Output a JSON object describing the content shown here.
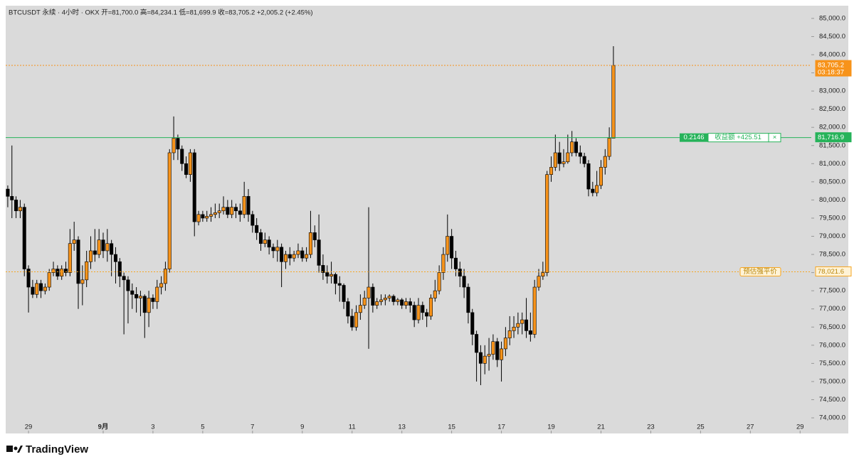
{
  "chart_data": {
    "type": "candlestick",
    "title": "BTCUSDT 永续 · 4小时 · OKX  开=81,700.0  高=84,234.1  低=81,699.9  收=83,705.2  +2,005.2 (+2.45%)",
    "up_color": "#f7931a",
    "down_color": "#000000",
    "open": [
      80300,
      80100,
      80000,
      79700,
      79800,
      78100,
      77600,
      77400,
      77700,
      77500,
      77600,
      78000,
      78100,
      77900,
      78100,
      78000,
      78800,
      78900,
      77700,
      77800,
      78300,
      78600,
      78500,
      78900,
      78600,
      78800,
      78500,
      78300,
      77900,
      77800,
      77500,
      77400,
      77300,
      77350,
      76900,
      77300,
      77200,
      77600,
      77700,
      78100,
      81300,
      81700,
      81400,
      81000,
      80700,
      81300,
      79400,
      79600,
      79500,
      79550,
      79600,
      79650,
      79700,
      79800,
      79600,
      79800,
      79700,
      79600,
      80100,
      79600,
      79300,
      79100,
      78800,
      78900,
      78700,
      78600,
      78700,
      78300,
      78500,
      78400,
      78500,
      78600,
      78400,
      78500,
      79100,
      78900,
      78200,
      78000,
      77900,
      77950,
      77700,
      77650,
      77200,
      76800,
      76500,
      76900,
      77100,
      77300,
      77600,
      77100,
      77200,
      77250,
      77300,
      77350,
      77200,
      77250,
      77100,
      77200,
      77100,
      76700,
      77100,
      76900,
      76800,
      77300,
      77500,
      78000,
      78500,
      79000,
      78400,
      78100,
      77900,
      77600,
      76900,
      76300,
      75800,
      75500,
      75700,
      75750,
      76100,
      75600,
      75900,
      76200,
      76400,
      76500,
      76600,
      76700,
      76400,
      76300,
      77600,
      77900,
      78000,
      80700,
      80900,
      81300,
      81000,
      81050,
      81300,
      81600,
      81300,
      81200,
      81000,
      80300,
      80200,
      80400,
      80900,
      81200,
      81700
    ],
    "high": [
      80400,
      81500,
      80100,
      80000,
      79900,
      78200,
      77800,
      77800,
      77800,
      77700,
      78100,
      78300,
      78200,
      78200,
      78300,
      79200,
      79400,
      79000,
      78200,
      78600,
      79000,
      79200,
      79200,
      79100,
      79200,
      78900,
      78700,
      78400,
      78000,
      77900,
      77700,
      77600,
      77500,
      77400,
      77500,
      77400,
      77800,
      77900,
      78300,
      81400,
      82300,
      81800,
      81500,
      81200,
      81400,
      81400,
      79700,
      79700,
      79700,
      79800,
      79900,
      79900,
      80100,
      80000,
      80000,
      79900,
      79900,
      80500,
      80300,
      79700,
      79500,
      79200,
      79100,
      79000,
      78800,
      78900,
      78800,
      78600,
      78700,
      78600,
      78800,
      78700,
      78700,
      79700,
      79300,
      79600,
      78500,
      78200,
      78300,
      78000,
      77900,
      77700,
      77300,
      77000,
      77100,
      77400,
      77500,
      79800,
      77700,
      77300,
      77400,
      77400,
      77400,
      77400,
      77300,
      77300,
      77300,
      77300,
      77200,
      77300,
      77200,
      77000,
      77400,
      77800,
      78200,
      78700,
      79600,
      79200,
      78600,
      78300,
      78100,
      77700,
      77000,
      76400,
      76000,
      76000,
      76200,
      76300,
      76200,
      76100,
      76500,
      76800,
      76800,
      76900,
      76900,
      77300,
      76900,
      77800,
      78100,
      78300,
      80800,
      81200,
      81800,
      81600,
      81400,
      81800,
      81900,
      81700,
      81500,
      81300,
      81100,
      80500,
      80800,
      81100,
      81400,
      82000,
      84234.1
    ],
    "low": [
      79800,
      79500,
      79500,
      79500,
      77900,
      76900,
      77300,
      77300,
      77300,
      77400,
      77500,
      77900,
      77800,
      77800,
      77900,
      77900,
      78600,
      77000,
      77100,
      77600,
      78100,
      78300,
      78400,
      78400,
      78300,
      77900,
      77700,
      77600,
      76300,
      76600,
      77000,
      76900,
      76800,
      76200,
      76500,
      77000,
      77000,
      77400,
      77500,
      78000,
      81100,
      81100,
      80800,
      80600,
      80500,
      79000,
      79300,
      79400,
      79400,
      79400,
      79500,
      79500,
      79600,
      79500,
      79500,
      79500,
      79400,
      79500,
      79400,
      79100,
      78900,
      78600,
      78700,
      78500,
      78400,
      78300,
      77600,
      78100,
      78200,
      78300,
      78400,
      78300,
      78300,
      78400,
      78700,
      78000,
      77800,
      77700,
      77700,
      77400,
      77200,
      77000,
      76600,
      76400,
      76400,
      76700,
      77000,
      75900,
      76900,
      77000,
      77100,
      77100,
      77200,
      77100,
      77100,
      77000,
      77000,
      76900,
      76500,
      76600,
      76700,
      76500,
      76700,
      77200,
      77400,
      77800,
      78300,
      78100,
      77900,
      77600,
      77300,
      76600,
      76000,
      75000,
      74900,
      75200,
      75300,
      75600,
      75400,
      75000,
      75700,
      76000,
      76200,
      76300,
      76300,
      76200,
      76100,
      76200,
      77500,
      77800,
      77900,
      80500,
      80800,
      80800,
      80900,
      81000,
      81200,
      81200,
      81000,
      80900,
      80100,
      80100,
      80100,
      80300,
      80700,
      81100,
      81699.9
    ],
    "close": [
      80100,
      80000,
      79700,
      79800,
      78100,
      77600,
      77400,
      77700,
      77500,
      77600,
      78000,
      78100,
      77900,
      78100,
      78000,
      78800,
      78900,
      77700,
      77800,
      78300,
      78600,
      78500,
      78900,
      78600,
      78800,
      78500,
      78300,
      77900,
      77800,
      77500,
      77400,
      77300,
      77350,
      76900,
      77300,
      77200,
      77600,
      77700,
      78100,
      81300,
      81700,
      81400,
      81000,
      80700,
      81300,
      79400,
      79600,
      79500,
      79550,
      79600,
      79650,
      79700,
      79800,
      79600,
      79800,
      79700,
      79600,
      80100,
      79600,
      79300,
      79100,
      78800,
      78900,
      78700,
      78600,
      78700,
      78300,
      78500,
      78400,
      78500,
      78600,
      78400,
      78500,
      79100,
      78900,
      78200,
      78000,
      77900,
      77950,
      77700,
      77650,
      77200,
      76800,
      76500,
      76900,
      77100,
      77300,
      77600,
      77100,
      77200,
      77250,
      77300,
      77350,
      77200,
      77250,
      77100,
      77200,
      77100,
      76700,
      77100,
      76900,
      76800,
      77300,
      77500,
      78000,
      78500,
      79000,
      78400,
      78100,
      77900,
      77600,
      76900,
      76300,
      75800,
      75500,
      75700,
      75750,
      76100,
      75600,
      75900,
      76200,
      76400,
      76500,
      76600,
      76700,
      76400,
      76300,
      77600,
      77900,
      78000,
      80700,
      80900,
      81300,
      81000,
      81050,
      81300,
      81600,
      81300,
      81200,
      81000,
      80300,
      80200,
      80400,
      80900,
      81200,
      81700,
      83705.2
    ],
    "xlim": [
      -0.5,
      193.7
    ],
    "xticks": [
      {
        "value": 5,
        "label": "29"
      },
      {
        "value": 23,
        "label": "9月"
      },
      {
        "value": 35,
        "label": "3"
      },
      {
        "value": 47,
        "label": "5"
      },
      {
        "value": 59,
        "label": "7"
      },
      {
        "value": 71,
        "label": "9"
      },
      {
        "value": 83,
        "label": "11"
      },
      {
        "value": 95,
        "label": "13"
      },
      {
        "value": 107,
        "label": "15"
      },
      {
        "value": 119,
        "label": "17"
      },
      {
        "value": 131,
        "label": "19"
      },
      {
        "value": 143,
        "label": "21"
      },
      {
        "value": 155,
        "label": "23"
      },
      {
        "value": 167,
        "label": "25"
      },
      {
        "value": 179,
        "label": "27"
      },
      {
        "value": 191,
        "label": "29"
      }
    ],
    "ylim": [
      73570,
      85350
    ],
    "yticks": [
      {
        "value": 74000,
        "label": "74,000.0"
      },
      {
        "value": 74500,
        "label": "74,500.0"
      },
      {
        "value": 75000,
        "label": "75,000.0"
      },
      {
        "value": 75500,
        "label": "75,500.0"
      },
      {
        "value": 76000,
        "label": "76,000.0"
      },
      {
        "value": 76500,
        "label": "76,500.0"
      },
      {
        "value": 77000,
        "label": "77,000.0"
      },
      {
        "value": 77500,
        "label": "77,500.0"
      },
      {
        "value": 78000,
        "label": "78,000.0"
      },
      {
        "value": 78500,
        "label": "78,500.0"
      },
      {
        "value": 79000,
        "label": "79,000.0"
      },
      {
        "value": 79500,
        "label": "79,500.0"
      },
      {
        "value": 80000,
        "label": "80,000.0"
      },
      {
        "value": 80500,
        "label": "80,500.0"
      },
      {
        "value": 81000,
        "label": "81,000.0"
      },
      {
        "value": 81500,
        "label": "81,500.0"
      },
      {
        "value": 82000,
        "label": "82,000.0"
      },
      {
        "value": 82500,
        "label": "82,500.0"
      },
      {
        "value": 83000,
        "label": "83,000.0"
      },
      {
        "value": 83500,
        "label": "83,500.0"
      },
      {
        "value": 84000,
        "label": "84,000.0"
      },
      {
        "value": 84500,
        "label": "84,500.0"
      },
      {
        "value": 85000,
        "label": "85,000.0"
      }
    ],
    "hlines": [
      {
        "value": 83705.2,
        "label": "83,705.2",
        "countdown": "03:18:37",
        "color": "#f7931a"
      },
      {
        "value": 81716.9,
        "label": "81,716.9",
        "quantity": "0.2146",
        "pnl": "收益额 +425.51",
        "close_button": "×",
        "color": "#26b35a"
      },
      {
        "value": 78021.6,
        "label": "78,021.6",
        "note": "预估强平价",
        "color": "#f5a623"
      }
    ]
  },
  "footer": {
    "brand": "TradingView"
  }
}
